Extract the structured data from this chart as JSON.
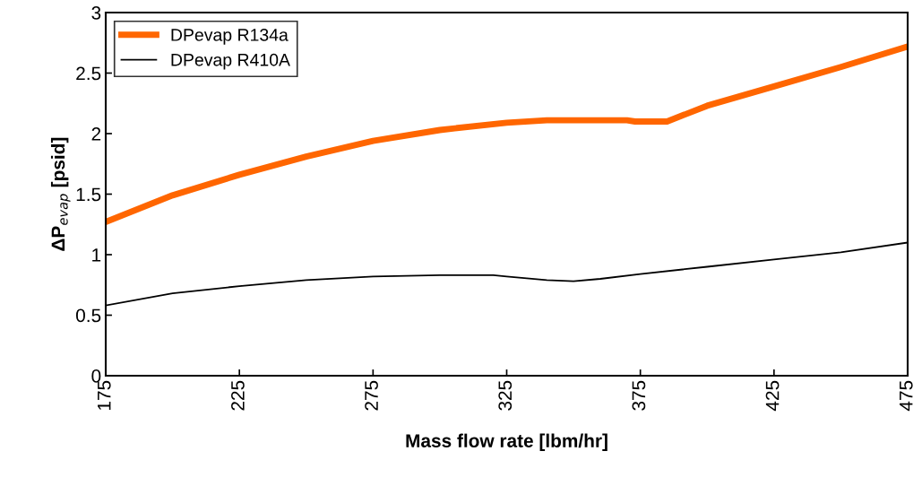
{
  "chart_data": {
    "type": "line",
    "xlabel": "Mass flow rate [lbm/hr]",
    "ylabel": "ΔP$_{evap}$ [psid]",
    "series": [
      {
        "name": "DPevap R134a",
        "color": "#ff6600",
        "x": [
          175,
          200,
          225,
          250,
          275,
          300,
          325,
          340,
          370,
          373,
          385,
          400,
          425,
          450,
          475
        ],
        "values": [
          1.27,
          1.49,
          1.66,
          1.81,
          1.94,
          2.03,
          2.09,
          2.11,
          2.11,
          2.1,
          2.1,
          2.23,
          2.39,
          2.55,
          2.72
        ]
      },
      {
        "name": "DPevap R410A",
        "color": "#000000",
        "x": [
          175,
          200,
          225,
          250,
          275,
          300,
          320,
          325,
          340,
          350,
          360,
          375,
          400,
          425,
          450,
          475
        ],
        "values": [
          0.58,
          0.68,
          0.74,
          0.79,
          0.82,
          0.83,
          0.83,
          0.82,
          0.79,
          0.78,
          0.8,
          0.84,
          0.9,
          0.96,
          1.02,
          1.1
        ]
      }
    ],
    "xlim": [
      175,
      475
    ],
    "xticks": [
      175,
      225,
      275,
      325,
      375,
      425,
      475
    ],
    "ylim": [
      0,
      3
    ],
    "yticks": [
      0,
      0.5,
      1,
      1.5,
      2,
      2.5,
      3
    ],
    "grid": false,
    "legend": "top left",
    "marker": "none",
    "line_style": "solid"
  }
}
